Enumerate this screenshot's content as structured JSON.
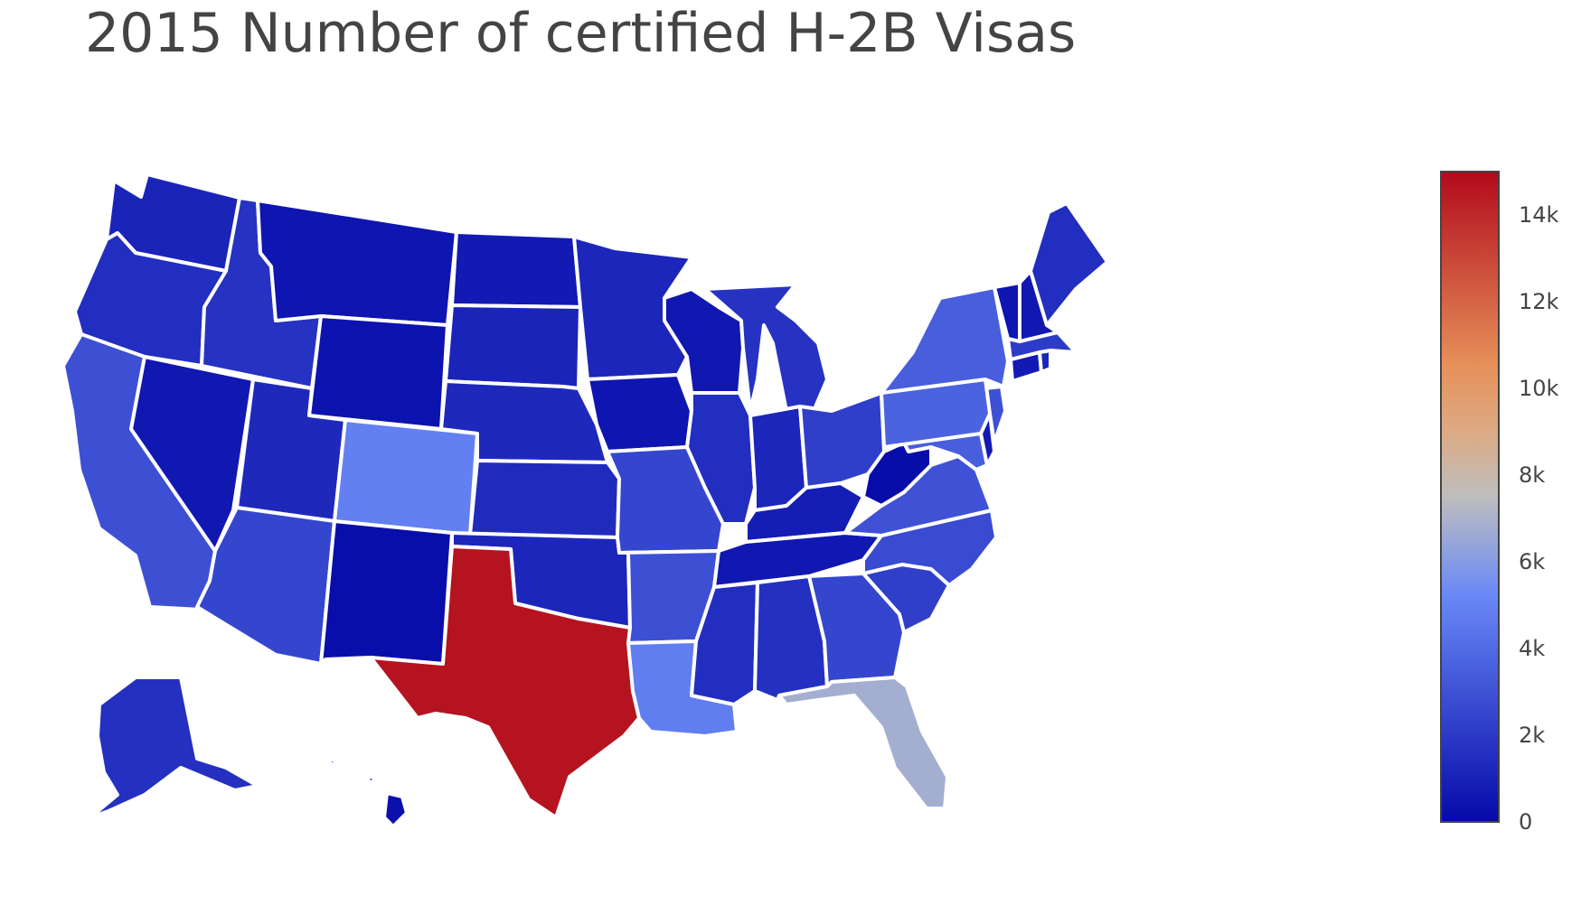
{
  "title": "2015 Number of certified H-2B Visas",
  "chart_data": {
    "type": "choropleth",
    "title": "2015 Number of certified H-2B Visas",
    "scope": "usa",
    "locationmode": "USA-states",
    "colorscale": [
      {
        "stop": 0.0,
        "color": "#0509a8"
      },
      {
        "stop": 0.35,
        "color": "#6a89f7"
      },
      {
        "stop": 0.5,
        "color": "#bebebe"
      },
      {
        "stop": 0.6,
        "color": "#dcaa84"
      },
      {
        "stop": 0.7,
        "color": "#e6915a"
      },
      {
        "stop": 1.0,
        "color": "#b20a1c"
      }
    ],
    "zmin": 0,
    "zmax": 15000,
    "colorbar_ticks": [
      {
        "value": 0,
        "label": "0"
      },
      {
        "value": 2000,
        "label": "2k"
      },
      {
        "value": 4000,
        "label": "4k"
      },
      {
        "value": 6000,
        "label": "6k"
      },
      {
        "value": 8000,
        "label": "8k"
      },
      {
        "value": 10000,
        "label": "10k"
      },
      {
        "value": 12000,
        "label": "12k"
      },
      {
        "value": 14000,
        "label": "14k"
      }
    ],
    "states": [
      {
        "code": "WA",
        "value": 1100
      },
      {
        "code": "OR",
        "value": 1500
      },
      {
        "code": "CA",
        "value": 2900
      },
      {
        "code": "ID",
        "value": 1700
      },
      {
        "code": "NV",
        "value": 600
      },
      {
        "code": "MT",
        "value": 500
      },
      {
        "code": "WY",
        "value": 400
      },
      {
        "code": "UT",
        "value": 1300
      },
      {
        "code": "AZ",
        "value": 2500
      },
      {
        "code": "CO",
        "value": 4900
      },
      {
        "code": "NM",
        "value": 200
      },
      {
        "code": "ND",
        "value": 700
      },
      {
        "code": "SD",
        "value": 1100
      },
      {
        "code": "NE",
        "value": 1300
      },
      {
        "code": "KS",
        "value": 1400
      },
      {
        "code": "OK",
        "value": 1200
      },
      {
        "code": "TX",
        "value": 14700
      },
      {
        "code": "MN",
        "value": 1200
      },
      {
        "code": "IA",
        "value": 500
      },
      {
        "code": "MO",
        "value": 2500
      },
      {
        "code": "AR",
        "value": 2900
      },
      {
        "code": "LA",
        "value": 4800
      },
      {
        "code": "WI",
        "value": 600
      },
      {
        "code": "IL",
        "value": 1500
      },
      {
        "code": "MI",
        "value": 1700
      },
      {
        "code": "IN",
        "value": 1200
      },
      {
        "code": "OH",
        "value": 2200
      },
      {
        "code": "KY",
        "value": 800
      },
      {
        "code": "TN",
        "value": 600
      },
      {
        "code": "MS",
        "value": 1500
      },
      {
        "code": "AL",
        "value": 1600
      },
      {
        "code": "GA",
        "value": 2500
      },
      {
        "code": "FL",
        "value": 6800
      },
      {
        "code": "SC",
        "value": 2200
      },
      {
        "code": "NC",
        "value": 2700
      },
      {
        "code": "VA",
        "value": 3000
      },
      {
        "code": "WV",
        "value": 150
      },
      {
        "code": "MD",
        "value": 3500
      },
      {
        "code": "DE",
        "value": 700
      },
      {
        "code": "NJ",
        "value": 2900
      },
      {
        "code": "PA",
        "value": 3700
      },
      {
        "code": "NY",
        "value": 3500
      },
      {
        "code": "CT",
        "value": 700
      },
      {
        "code": "RI",
        "value": 1100
      },
      {
        "code": "MA",
        "value": 2100
      },
      {
        "code": "VT",
        "value": 500
      },
      {
        "code": "NH",
        "value": 600
      },
      {
        "code": "ME",
        "value": 1500
      },
      {
        "code": "AK",
        "value": 1600
      },
      {
        "code": "HI",
        "value": 300
      }
    ]
  }
}
